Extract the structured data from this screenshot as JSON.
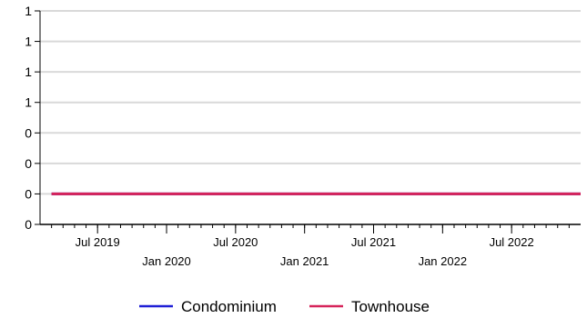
{
  "chart_data": {
    "type": "line",
    "title": "",
    "xlabel": "",
    "ylabel": "",
    "y_tick_labels": [
      "1",
      "1",
      "1",
      "1",
      "0",
      "0",
      "0",
      "0"
    ],
    "x_tick_labels_upper": [
      "Jul 2019",
      "Jul 2020",
      "Jul 2021",
      "Jul 2022"
    ],
    "x_tick_labels_lower": [
      "Jan 2020",
      "Jan 2021",
      "Jan 2022"
    ],
    "x_range": [
      "2019-02",
      "2023-01"
    ],
    "grid": "horizontal",
    "legend_placement": "bottom",
    "series": [
      {
        "name": "Condominium",
        "color": "#1f1fd6",
        "x": [
          "2019-03",
          "2023-01"
        ],
        "y": [
          0,
          0
        ]
      },
      {
        "name": "Townhouse",
        "color": "#d6245a",
        "x": [
          "2019-03",
          "2023-01"
        ],
        "y": [
          0,
          0
        ]
      }
    ]
  }
}
